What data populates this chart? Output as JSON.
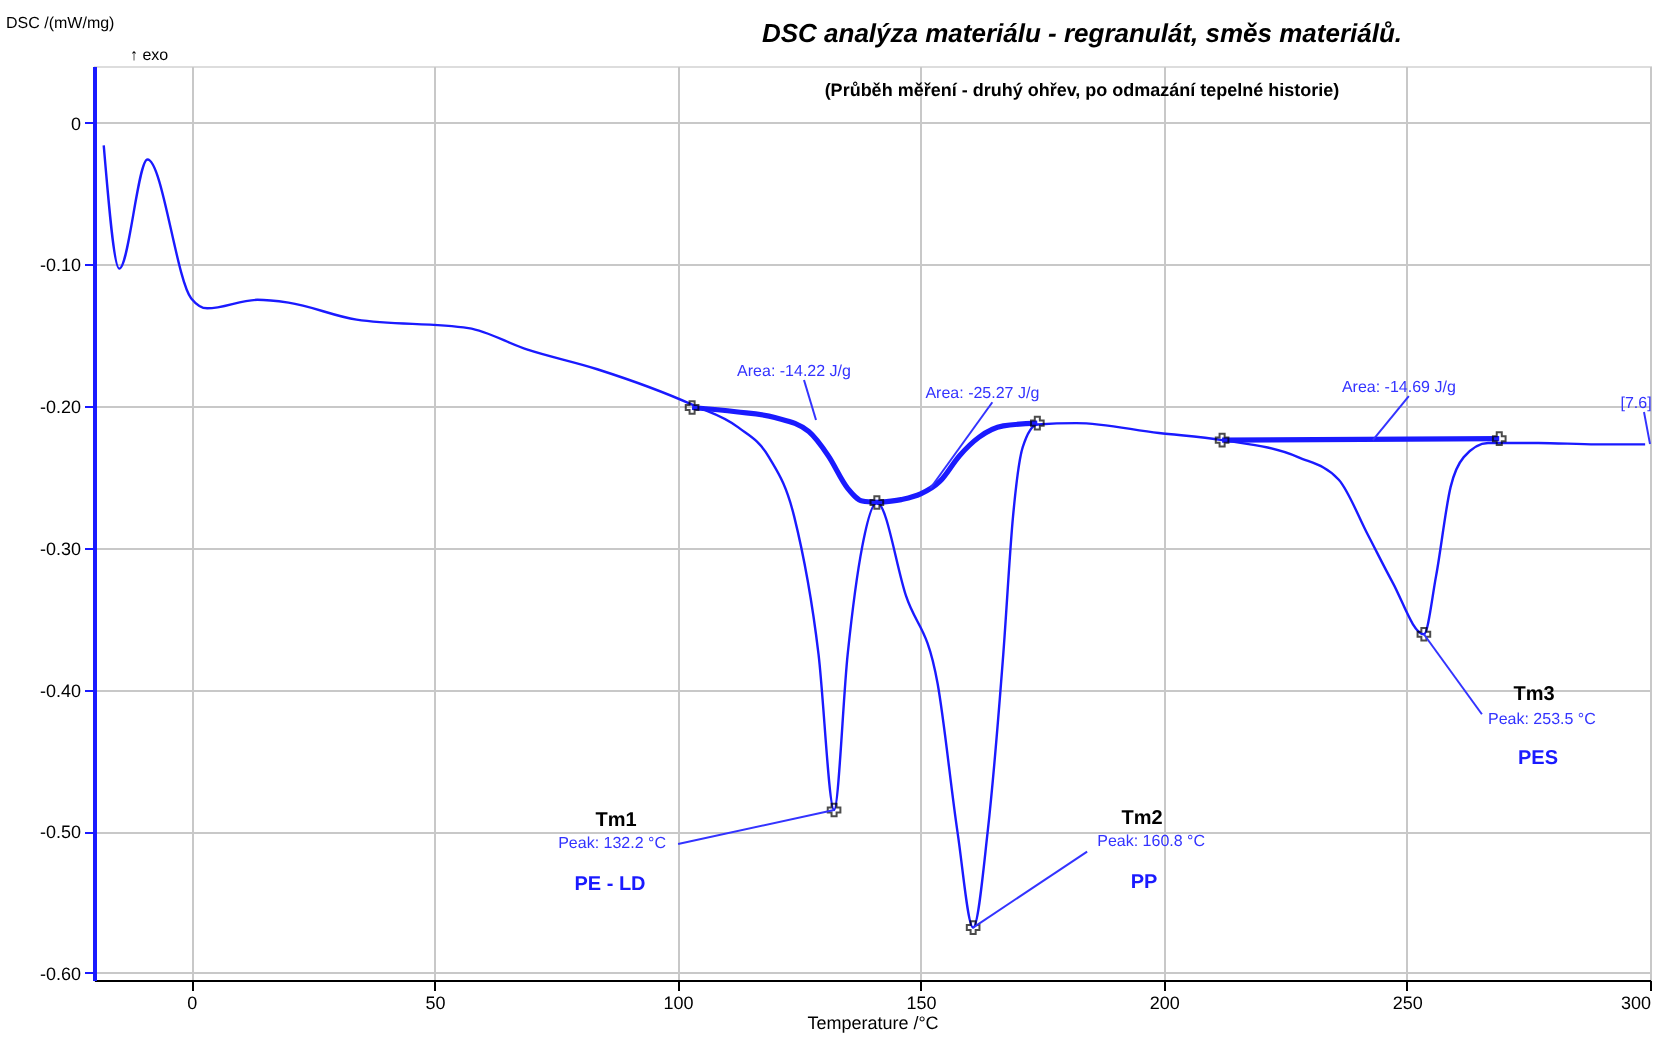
{
  "chart_data": {
    "type": "line",
    "title": "DSC analýza materiálu - regranulát, směs materiálů.",
    "subtitle": "(Průběh měření - druhý ohřev, po odmazání tepelné historie)",
    "xlabel": "Temperature /°C",
    "ylabel": "DSC /(mW/mg)",
    "xlim": [
      -20,
      300
    ],
    "ylim": [
      -0.605,
      0.04
    ],
    "xticks": [
      0,
      50,
      100,
      150,
      200,
      250,
      300
    ],
    "yticks": [
      0,
      {
        "value": -0.1,
        "label": "-0.10"
      },
      {
        "value": -0.2,
        "label": "-0.20"
      },
      {
        "value": -0.3,
        "label": "-0.30"
      },
      {
        "value": -0.4,
        "label": "-0.40"
      },
      {
        "value": -0.5,
        "label": "-0.50"
      },
      {
        "value": -0.6,
        "label": "-0.60"
      }
    ],
    "grid": true,
    "line_style": "solid",
    "marker": "none",
    "series": [
      {
        "color": "#1a1aff",
        "x": [
          -18,
          -14.8,
          -9,
          0,
          3.3,
          13.6,
          20,
          34,
          57,
          69,
          83.5,
          103,
          112.5,
          118.8,
          124,
          129,
          132.2,
          135,
          138,
          141,
          147,
          153.5,
          157.6,
          160.8,
          163.8,
          167,
          169,
          171,
          174,
          182,
          199,
          212,
          227.6,
          236,
          242,
          247,
          253.5,
          256,
          259,
          261.7,
          266.7,
          277,
          289,
          299
        ],
        "values": [
          -0.016,
          -0.103,
          -0.026,
          -0.124,
          -0.131,
          -0.125,
          -0.127,
          -0.139,
          -0.145,
          -0.16,
          -0.174,
          -0.199,
          -0.215,
          -0.236,
          -0.278,
          -0.375,
          -0.485,
          -0.375,
          -0.299,
          -0.268,
          -0.334,
          -0.396,
          -0.501,
          -0.568,
          -0.5,
          -0.375,
          -0.278,
          -0.229,
          -0.213,
          -0.212,
          -0.219,
          -0.224,
          -0.236,
          -0.252,
          -0.291,
          -0.324,
          -0.361,
          -0.32,
          -0.257,
          -0.236,
          -0.226,
          -0.226,
          -0.227,
          -0.227
        ]
      },
      {
        "color": "#1a1aff",
        "x": [
          103,
          112,
          120,
          127,
          131,
          135,
          138,
          141
        ],
        "values": [
          -0.201,
          -0.204,
          -0.208,
          -0.218,
          -0.235,
          -0.258,
          -0.267,
          -0.268
        ]
      },
      {
        "color": "#1a1aff",
        "x": [
          141,
          146,
          150,
          154,
          158,
          162,
          167,
          174
        ],
        "values": [
          -0.268,
          -0.266,
          -0.262,
          -0.253,
          -0.235,
          -0.222,
          -0.214,
          -0.212
        ]
      },
      {
        "color": "#1a1aff",
        "x": [
          212,
          269
        ],
        "values": [
          -0.224,
          -0.223
        ]
      },
      {
        "type": "scatter",
        "marker": "cross",
        "color": "#000000",
        "x": [
          103,
          132.2,
          141,
          160.8,
          174,
          212,
          253.5,
          269
        ],
        "values": [
          -0.201,
          -0.485,
          -0.268,
          -0.568,
          -0.212,
          -0.224,
          -0.361,
          -0.223
        ]
      }
    ],
    "annotations": [
      "↑ exo",
      "Area: -14.22 J/g",
      {
        "text": "Area: -25.27 J/g",
        "x": 152,
        "y": -0.258
      },
      {
        "text": "Area: -14.69 J/g",
        "x": 243,
        "y": -0.224
      },
      "[7.6]",
      "Tm1",
      {
        "text": "Peak: 132.2 °C",
        "x": 132.2,
        "y": -0.485
      },
      "PE - LD",
      "Tm2",
      {
        "text": "Peak: 160.8 °C",
        "x": 160.8,
        "y": -0.568
      },
      "PP",
      "Tm3",
      {
        "text": "Peak: 253.5 °C",
        "x": 253.5,
        "y": -0.361
      },
      "PES"
    ]
  }
}
